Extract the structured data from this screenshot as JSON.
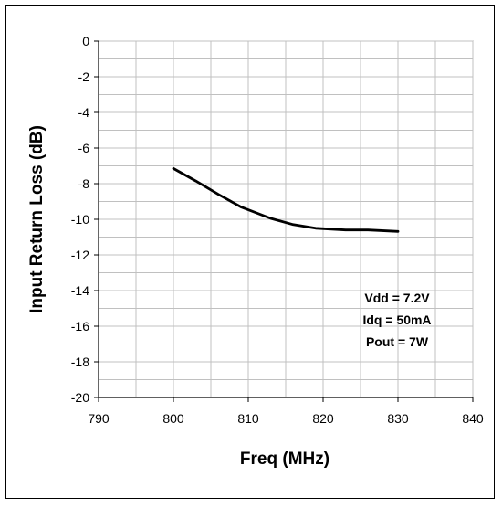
{
  "chart_data": {
    "type": "line",
    "title": "",
    "xlabel": "Freq (MHz)",
    "ylabel": "Input Return Loss (dB)",
    "xlim": [
      790,
      840
    ],
    "ylim": [
      -20,
      0
    ],
    "x_ticks": [
      790,
      800,
      810,
      820,
      830,
      840
    ],
    "y_ticks": [
      0,
      -2,
      -4,
      -6,
      -8,
      -10,
      -12,
      -14,
      -16,
      -18,
      -20
    ],
    "grid": true,
    "series": [
      {
        "x": [
          800,
          803,
          806,
          809,
          813,
          816,
          819,
          823,
          826,
          830
        ],
        "y": [
          -7.15,
          -7.85,
          -8.6,
          -9.3,
          -9.95,
          -10.3,
          -10.5,
          -10.6,
          -10.6,
          -10.68
        ]
      }
    ],
    "annotations": [
      "Vdd = 7.2V",
      "Idq = 50mA",
      "Pout = 7W"
    ],
    "line_color": "#000000",
    "grid_color": "#c0c0c0"
  }
}
